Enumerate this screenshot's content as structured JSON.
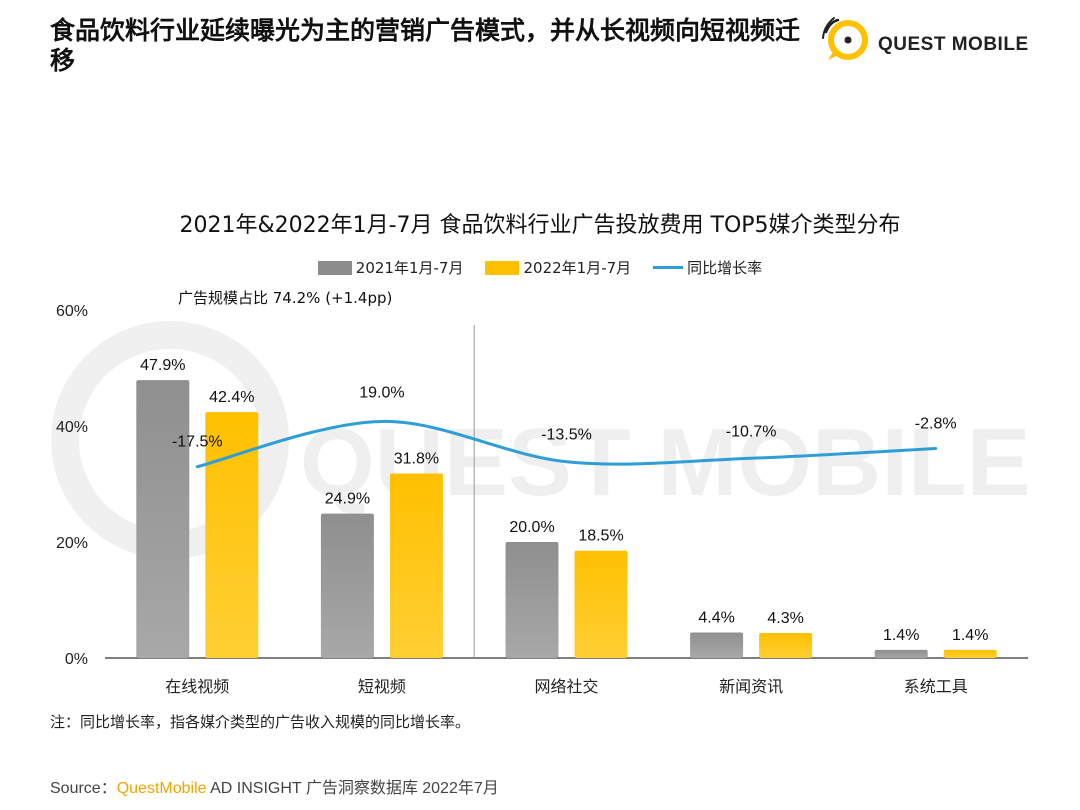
{
  "header": {
    "title": "食品饮料行业延续曝光为主的营销广告模式，并从长视频向短视频迁移"
  },
  "logo": {
    "text": "QUEST MOBILE"
  },
  "annotation": "广告规模占比 74.2% (+1.4pp)",
  "note": "注：同比增长率，指各媒介类型的广告收入规模的同比增长率。",
  "source": {
    "prefix": "Source：",
    "brand": "QuestMobile",
    "rest": " AD INSIGHT 广告洞察数据库 2022年7月"
  },
  "watermark": "QUEST MOBILE",
  "colors": {
    "series_2021": "#8c8c8c",
    "series_2022": "#ffc000",
    "growth_line": "#2e9fd6",
    "brand": "#f0a500"
  },
  "chart_data": {
    "type": "bar",
    "title": "2021年&2022年1月-7月 食品饮料行业广告投放费用 TOP5媒介类型分布",
    "categories": [
      "在线视频",
      "短视频",
      "网络社交",
      "新闻资讯",
      "系统工具"
    ],
    "series": [
      {
        "name": "2021年1月-7月",
        "values": [
          47.9,
          24.9,
          20.0,
          4.4,
          1.4
        ],
        "labels": [
          "47.9%",
          "24.9%",
          "20.0%",
          "4.4%",
          "1.4%"
        ]
      },
      {
        "name": "2022年1月-7月",
        "values": [
          42.4,
          31.8,
          18.5,
          4.3,
          1.4
        ],
        "labels": [
          "42.4%",
          "31.8%",
          "18.5%",
          "4.3%",
          "1.4%"
        ]
      }
    ],
    "line_series": {
      "name": "同比增长率",
      "values": [
        -17.5,
        19.0,
        -13.5,
        -10.7,
        -2.8
      ],
      "labels": [
        "-17.5%",
        "19.0%",
        "-13.5%",
        "-10.7%",
        "-2.8%"
      ]
    },
    "yticks": [
      "0%",
      "20%",
      "40%",
      "60%"
    ],
    "ylim": [
      0,
      60
    ],
    "grid": false,
    "legend_position": "top-center"
  }
}
